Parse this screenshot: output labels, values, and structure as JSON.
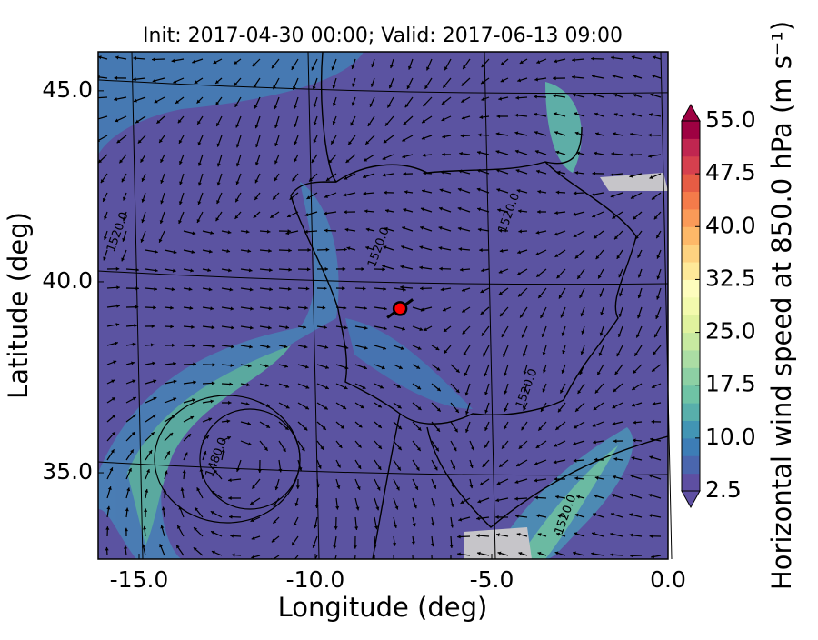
{
  "chart_data": {
    "type": "contourf",
    "title": "Init: 2017-04-30 00:00; Valid: 2017-06-13 09:00",
    "xlabel": "Longitude (deg)",
    "ylabel": "Latitude (deg)",
    "xlim": [
      -16.16,
      0.0
    ],
    "ylim": [
      32.74,
      46.02
    ],
    "xticks": [
      {
        "value": -15,
        "label": "-15.0"
      },
      {
        "value": -10,
        "label": "-10.0"
      },
      {
        "value": -5,
        "label": "-5.0"
      },
      {
        "value": 0,
        "label": "0.0"
      }
    ],
    "yticks": [
      {
        "value": 35,
        "label": "35.0"
      },
      {
        "value": 40,
        "label": "40.0"
      },
      {
        "value": 45,
        "label": "45.0"
      }
    ],
    "grid": true,
    "marker": {
      "x": -7.6,
      "y": 39.3,
      "color": "#ff0000"
    },
    "annotations": [
      {
        "text": "1520.0",
        "x": -15.6,
        "y": 41.3
      },
      {
        "text": "1520.0",
        "x": -8.2,
        "y": 40.9
      },
      {
        "text": "1520.0",
        "x": -4.5,
        "y": 41.8
      },
      {
        "text": "1520.0",
        "x": -4.0,
        "y": 37.2
      },
      {
        "text": "1520.0",
        "x": -2.9,
        "y": 33.9
      },
      {
        "text": "1480.0",
        "x": -12.8,
        "y": 35.4
      }
    ],
    "colorbar": {
      "label": "Horizontal wind speed at 850.0 hPa (m s⁻¹)",
      "lim": [
        2.5,
        55
      ],
      "ticks": [
        2.5,
        {
          "value": 10,
          "label": "10.0"
        },
        17.5,
        {
          "value": 25,
          "label": "25.0"
        },
        32.5,
        {
          "value": 40,
          "label": "40.0"
        },
        47.5,
        {
          "value": 55,
          "label": "55.0"
        }
      ],
      "colors": [
        "#5e4fa2",
        "#4a66ae",
        "#3d7db6",
        "#4295b4",
        "#58afab",
        "#6fc3a5",
        "#8dd0a4",
        "#abdda4",
        "#c7e9a0",
        "#e0f29e",
        "#f3faad",
        "#fefdbd",
        "#fee999",
        "#fdd280",
        "#fdb868",
        "#fa9a58",
        "#f47b4a",
        "#e65c44",
        "#d6404e",
        "#c02650",
        "#9e0142"
      ]
    }
  }
}
